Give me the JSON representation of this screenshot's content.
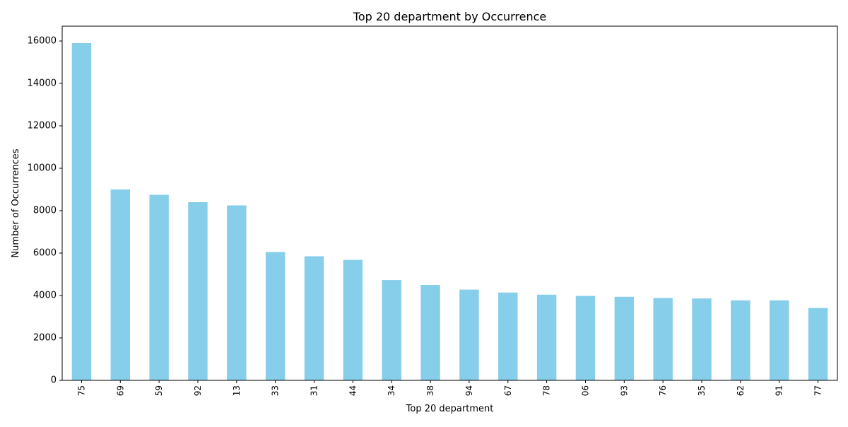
{
  "chart_data": {
    "type": "bar",
    "title": "Top 20 department by Occurrence",
    "xlabel": "Top 20 department",
    "ylabel": "Number of Occurrences",
    "categories": [
      "75",
      "69",
      "59",
      "92",
      "13",
      "33",
      "31",
      "44",
      "34",
      "38",
      "94",
      "67",
      "78",
      "06",
      "93",
      "76",
      "35",
      "62",
      "91",
      "77"
    ],
    "values": [
      15900,
      9000,
      8750,
      8400,
      8250,
      6050,
      5850,
      5680,
      4730,
      4500,
      4280,
      4140,
      4040,
      3980,
      3940,
      3880,
      3860,
      3770,
      3770,
      3410
    ],
    "ylim": [
      0,
      16700
    ],
    "yticks": [
      0,
      2000,
      4000,
      6000,
      8000,
      10000,
      12000,
      14000,
      16000
    ],
    "grid": false,
    "legend": "none",
    "bar_color": "#87CEEB"
  }
}
